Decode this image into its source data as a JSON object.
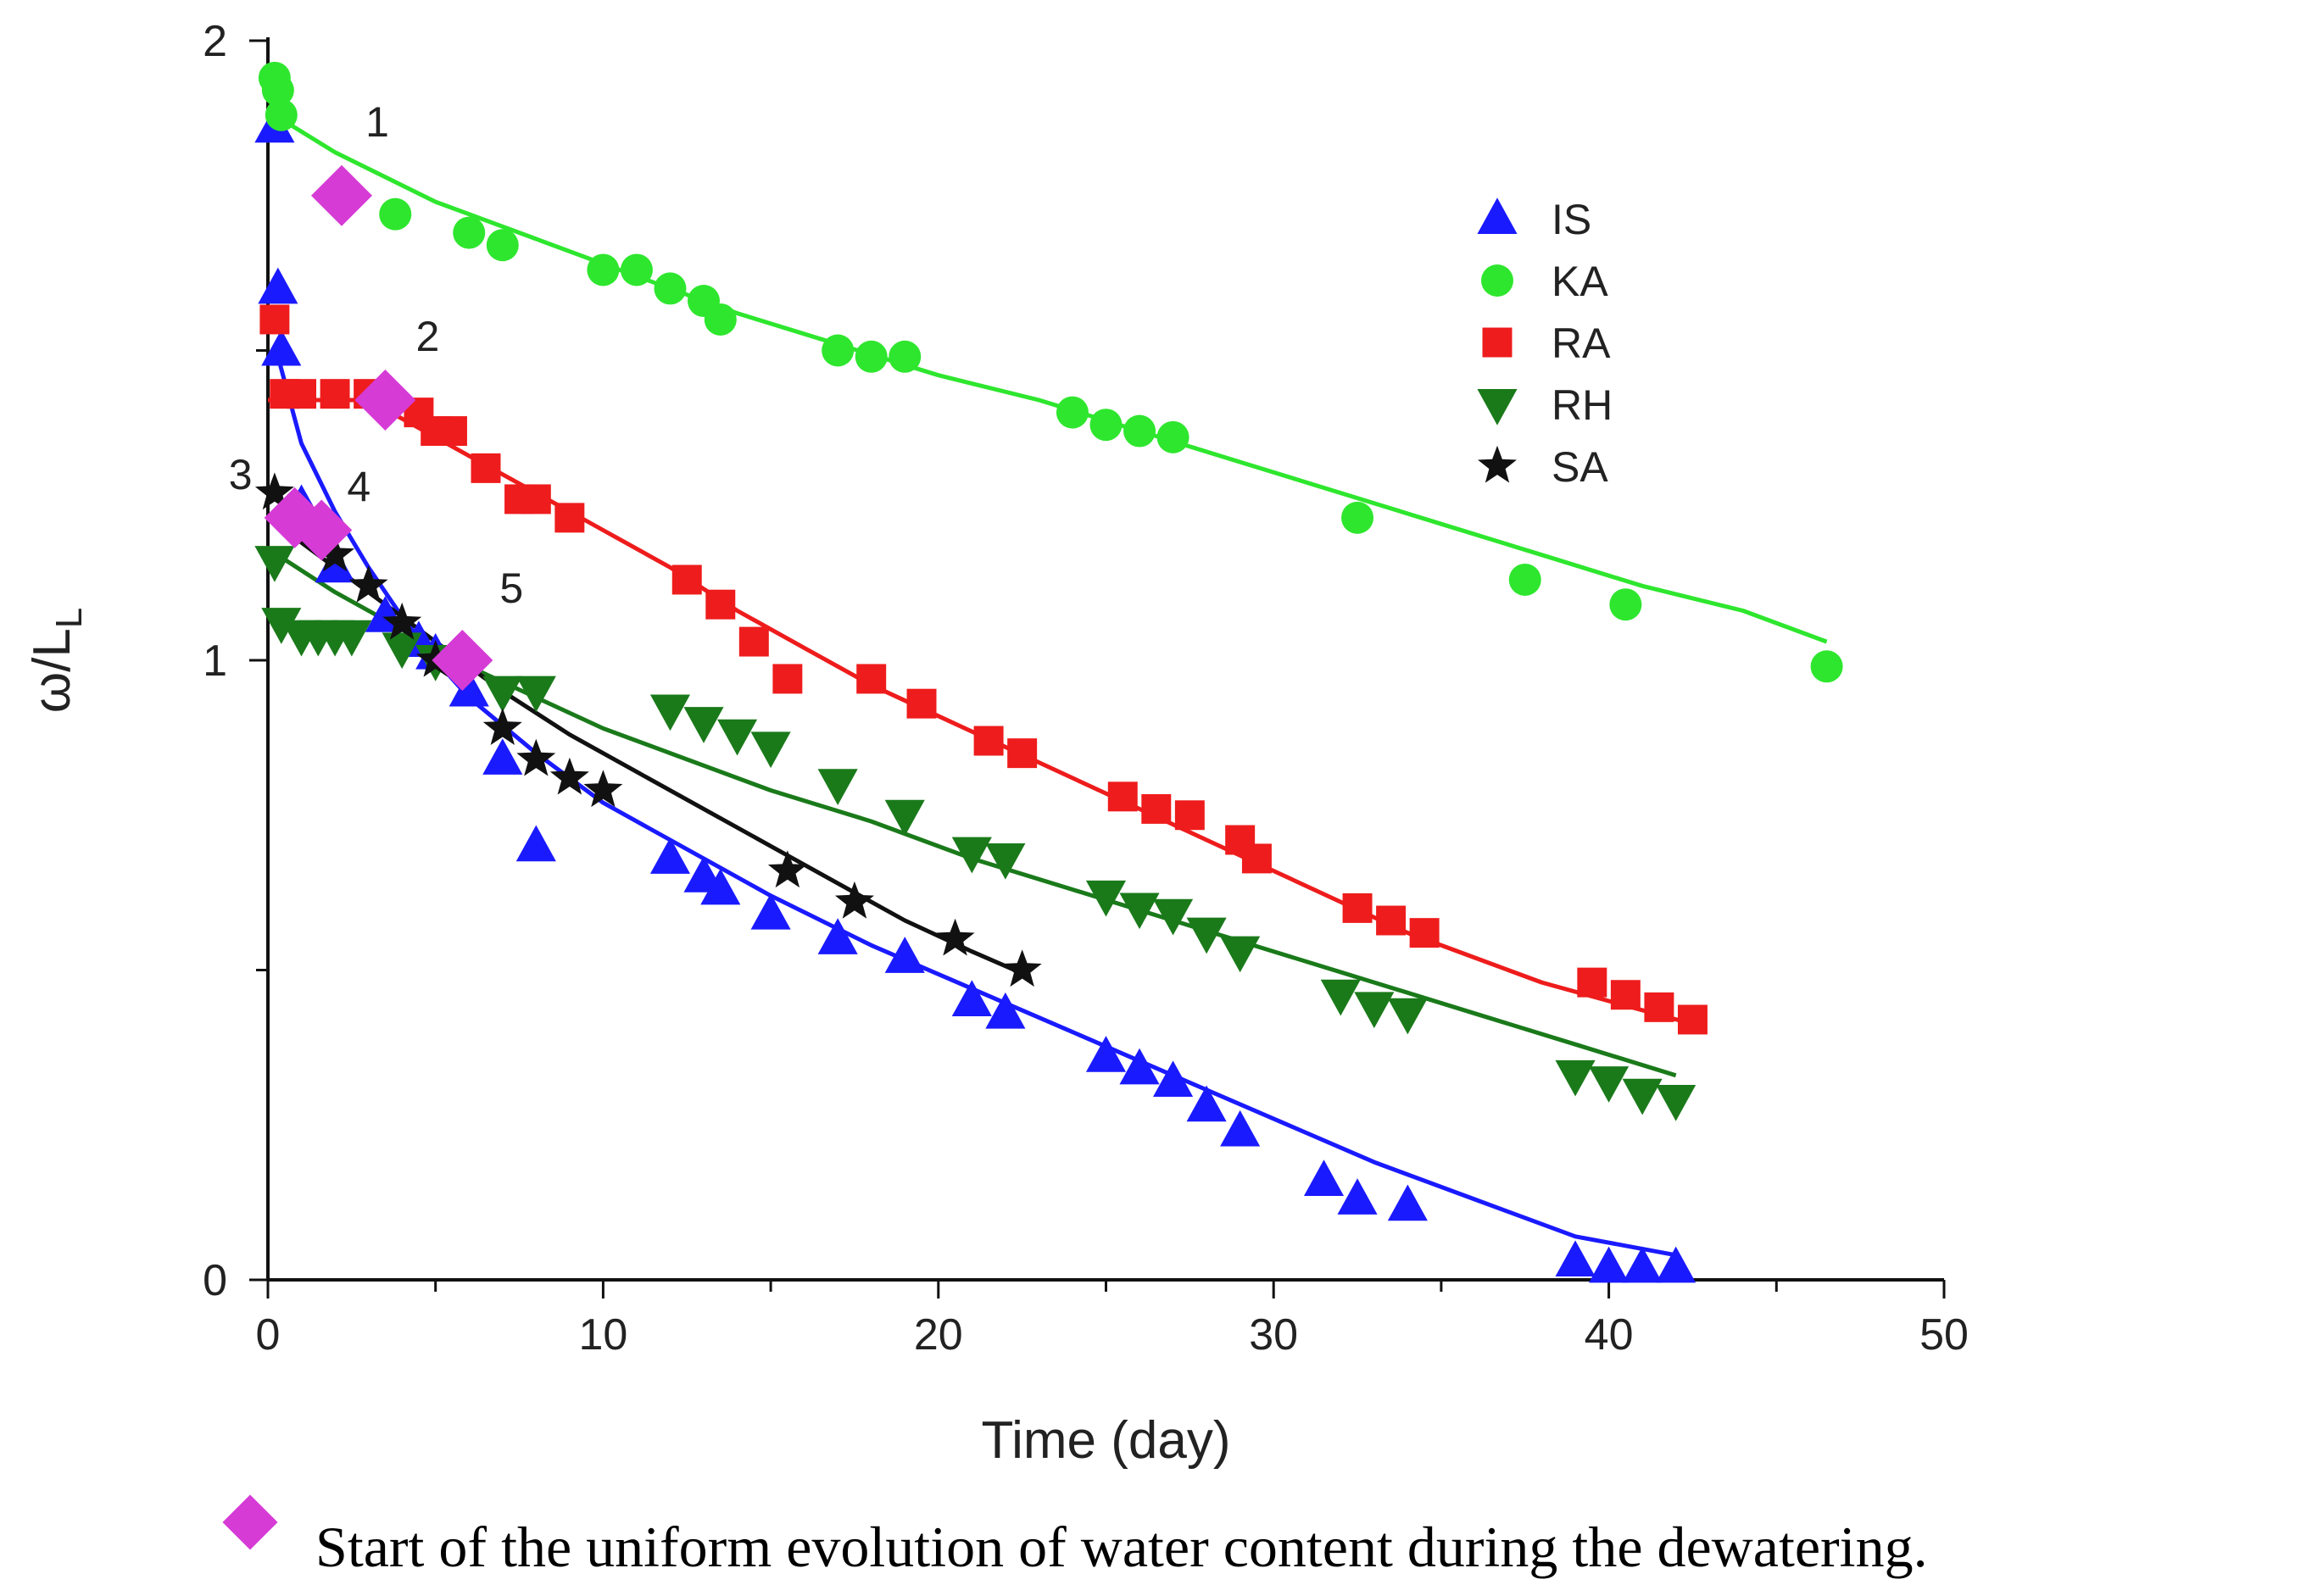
{
  "chart_data": {
    "type": "scatter",
    "xlabel": "Time (day)",
    "ylabel": "ω/L",
    "ylabel_sub": "L",
    "xlim": [
      0,
      50
    ],
    "ylim": [
      0,
      2
    ],
    "x_ticks": [
      0,
      10,
      20,
      30,
      40,
      50
    ],
    "y_ticks": [
      0,
      1,
      2
    ],
    "grid": false,
    "legend_position": "top-right",
    "colors": {
      "IS": "#1a1aff",
      "KA": "#2ee62e",
      "RA": "#ee1c1c",
      "RH": "#1a7a1a",
      "SA": "#111111",
      "onset": "#d63bd6"
    },
    "series": [
      {
        "name": "IS",
        "marker": "triangle-up",
        "points": [
          [
            0.2,
            1.86
          ],
          [
            0.3,
            1.6
          ],
          [
            0.4,
            1.5
          ],
          [
            1,
            1.25
          ],
          [
            2,
            1.15
          ],
          [
            3.5,
            1.07
          ],
          [
            4.5,
            1.03
          ],
          [
            5,
            1.01
          ],
          [
            6,
            0.95
          ],
          [
            7,
            0.84
          ],
          [
            8,
            0.7
          ],
          [
            12,
            0.68
          ],
          [
            13,
            0.65
          ],
          [
            13.5,
            0.63
          ],
          [
            15,
            0.59
          ],
          [
            17,
            0.55
          ],
          [
            19,
            0.52
          ],
          [
            21,
            0.45
          ],
          [
            22,
            0.43
          ],
          [
            25,
            0.36
          ],
          [
            26,
            0.34
          ],
          [
            27,
            0.32
          ],
          [
            28,
            0.28
          ],
          [
            29,
            0.24
          ],
          [
            31.5,
            0.16
          ],
          [
            32.5,
            0.13
          ],
          [
            34,
            0.12
          ],
          [
            39,
            0.03
          ],
          [
            40,
            0.02
          ],
          [
            41,
            0.02
          ],
          [
            42,
            0.02
          ]
        ],
        "fit": [
          [
            0.25,
            1.5
          ],
          [
            1,
            1.35
          ],
          [
            2,
            1.24
          ],
          [
            3,
            1.15
          ],
          [
            4,
            1.07
          ],
          [
            5,
            1.0
          ],
          [
            6,
            0.94
          ],
          [
            8,
            0.85
          ],
          [
            10,
            0.77
          ],
          [
            12,
            0.71
          ],
          [
            15,
            0.62
          ],
          [
            18,
            0.54
          ],
          [
            21,
            0.47
          ],
          [
            24,
            0.4
          ],
          [
            27,
            0.33
          ],
          [
            30,
            0.26
          ],
          [
            33,
            0.19
          ],
          [
            36,
            0.13
          ],
          [
            39,
            0.07
          ],
          [
            42,
            0.04
          ]
        ]
      },
      {
        "name": "KA",
        "marker": "circle",
        "points": [
          [
            0.2,
            1.94
          ],
          [
            0.3,
            1.92
          ],
          [
            0.4,
            1.88
          ],
          [
            3.8,
            1.72
          ],
          [
            6,
            1.69
          ],
          [
            7,
            1.67
          ],
          [
            10,
            1.63
          ],
          [
            11,
            1.63
          ],
          [
            12,
            1.6
          ],
          [
            13,
            1.58
          ],
          [
            13.5,
            1.55
          ],
          [
            17,
            1.5
          ],
          [
            18,
            1.49
          ],
          [
            19,
            1.49
          ],
          [
            24,
            1.4
          ],
          [
            25,
            1.38
          ],
          [
            26,
            1.37
          ],
          [
            27,
            1.36
          ],
          [
            32.5,
            1.23
          ],
          [
            37.5,
            1.13
          ],
          [
            40.5,
            1.09
          ],
          [
            46.5,
            0.99
          ]
        ],
        "fit": [
          [
            0.2,
            1.88
          ],
          [
            2,
            1.82
          ],
          [
            5,
            1.74
          ],
          [
            8,
            1.68
          ],
          [
            11,
            1.62
          ],
          [
            14,
            1.56
          ],
          [
            17,
            1.51
          ],
          [
            20,
            1.46
          ],
          [
            23,
            1.42
          ],
          [
            26,
            1.37
          ],
          [
            29,
            1.32
          ],
          [
            32,
            1.27
          ],
          [
            35,
            1.22
          ],
          [
            38,
            1.17
          ],
          [
            41,
            1.12
          ],
          [
            44,
            1.08
          ],
          [
            46.5,
            1.03
          ]
        ]
      },
      {
        "name": "RA",
        "marker": "square",
        "points": [
          [
            0.2,
            1.55
          ],
          [
            0.5,
            1.43
          ],
          [
            1,
            1.43
          ],
          [
            2,
            1.43
          ],
          [
            3,
            1.43
          ],
          [
            4.5,
            1.4
          ],
          [
            5,
            1.37
          ],
          [
            5.5,
            1.37
          ],
          [
            6.5,
            1.31
          ],
          [
            7.5,
            1.26
          ],
          [
            8,
            1.26
          ],
          [
            9,
            1.23
          ],
          [
            12.5,
            1.13
          ],
          [
            13.5,
            1.09
          ],
          [
            14.5,
            1.03
          ],
          [
            15.5,
            0.97
          ],
          [
            18,
            0.97
          ],
          [
            19.5,
            0.93
          ],
          [
            21.5,
            0.87
          ],
          [
            22.5,
            0.85
          ],
          [
            25.5,
            0.78
          ],
          [
            26.5,
            0.76
          ],
          [
            27.5,
            0.75
          ],
          [
            29,
            0.71
          ],
          [
            29.5,
            0.68
          ],
          [
            32.5,
            0.6
          ],
          [
            33.5,
            0.58
          ],
          [
            34.5,
            0.56
          ],
          [
            39.5,
            0.48
          ],
          [
            40.5,
            0.46
          ],
          [
            41.5,
            0.44
          ],
          [
            42.5,
            0.42
          ]
        ],
        "fit": [
          [
            0,
            1.42
          ],
          [
            1,
            1.42
          ],
          [
            2,
            1.42
          ],
          [
            3,
            1.42
          ],
          [
            4,
            1.39
          ],
          [
            6,
            1.33
          ],
          [
            8,
            1.27
          ],
          [
            10,
            1.21
          ],
          [
            12,
            1.15
          ],
          [
            14,
            1.08
          ],
          [
            16,
            1.02
          ],
          [
            18,
            0.96
          ],
          [
            20,
            0.91
          ],
          [
            22,
            0.86
          ],
          [
            24,
            0.81
          ],
          [
            26,
            0.76
          ],
          [
            28,
            0.71
          ],
          [
            30,
            0.66
          ],
          [
            32,
            0.61
          ],
          [
            34,
            0.56
          ],
          [
            36,
            0.52
          ],
          [
            38,
            0.48
          ],
          [
            40,
            0.45
          ],
          [
            42.7,
            0.41
          ]
        ]
      },
      {
        "name": "RH",
        "marker": "triangle-down",
        "points": [
          [
            0.2,
            1.16
          ],
          [
            0.4,
            1.06
          ],
          [
            1,
            1.04
          ],
          [
            1.5,
            1.04
          ],
          [
            2,
            1.04
          ],
          [
            2.5,
            1.04
          ],
          [
            4,
            1.02
          ],
          [
            5,
            1.0
          ],
          [
            7,
            0.95
          ],
          [
            8,
            0.95
          ],
          [
            12,
            0.92
          ],
          [
            13,
            0.9
          ],
          [
            14,
            0.88
          ],
          [
            15,
            0.86
          ],
          [
            17,
            0.8
          ],
          [
            19,
            0.75
          ],
          [
            21,
            0.69
          ],
          [
            22,
            0.68
          ],
          [
            25,
            0.62
          ],
          [
            26,
            0.6
          ],
          [
            27,
            0.59
          ],
          [
            28,
            0.56
          ],
          [
            29,
            0.53
          ],
          [
            32,
            0.46
          ],
          [
            33,
            0.44
          ],
          [
            34,
            0.43
          ],
          [
            39,
            0.33
          ],
          [
            40,
            0.32
          ],
          [
            41,
            0.3
          ],
          [
            42,
            0.29
          ]
        ],
        "fit": [
          [
            0,
            1.18
          ],
          [
            2,
            1.11
          ],
          [
            4,
            1.05
          ],
          [
            6,
            0.99
          ],
          [
            8,
            0.94
          ],
          [
            10,
            0.89
          ],
          [
            12,
            0.85
          ],
          [
            15,
            0.79
          ],
          [
            18,
            0.74
          ],
          [
            21,
            0.68
          ],
          [
            24,
            0.63
          ],
          [
            27,
            0.58
          ],
          [
            30,
            0.53
          ],
          [
            33,
            0.48
          ],
          [
            36,
            0.43
          ],
          [
            39,
            0.38
          ],
          [
            42,
            0.33
          ]
        ]
      },
      {
        "name": "SA",
        "marker": "star",
        "points": [
          [
            0.2,
            1.27
          ],
          [
            1,
            1.22
          ],
          [
            2,
            1.17
          ],
          [
            3,
            1.12
          ],
          [
            4,
            1.06
          ],
          [
            5,
            1.0
          ],
          [
            7,
            0.89
          ],
          [
            8,
            0.84
          ],
          [
            9,
            0.81
          ],
          [
            10,
            0.79
          ],
          [
            15.5,
            0.66
          ],
          [
            17.5,
            0.61
          ],
          [
            20.5,
            0.55
          ],
          [
            22.5,
            0.5
          ]
        ],
        "fit": [
          [
            0.2,
            1.22
          ],
          [
            1,
            1.19
          ],
          [
            2,
            1.15
          ],
          [
            3,
            1.11
          ],
          [
            4,
            1.07
          ],
          [
            5,
            1.03
          ],
          [
            7,
            0.95
          ],
          [
            9,
            0.88
          ],
          [
            11,
            0.82
          ],
          [
            13,
            0.76
          ],
          [
            15,
            0.7
          ],
          [
            17,
            0.64
          ],
          [
            19,
            0.58
          ],
          [
            21,
            0.53
          ],
          [
            22.7,
            0.49
          ]
        ]
      }
    ],
    "onset_markers": [
      {
        "label": "1",
        "x": 2.2,
        "y": 1.75
      },
      {
        "label": "2",
        "x": 3.5,
        "y": 1.42
      },
      {
        "label": "3",
        "x": 0.8,
        "y": 1.23
      },
      {
        "label": "4",
        "x": 1.6,
        "y": 1.21
      },
      {
        "label": "5",
        "x": 5.8,
        "y": 1.0
      }
    ],
    "footnote": "Start of the uniform evolution of water content during the dewatering."
  }
}
